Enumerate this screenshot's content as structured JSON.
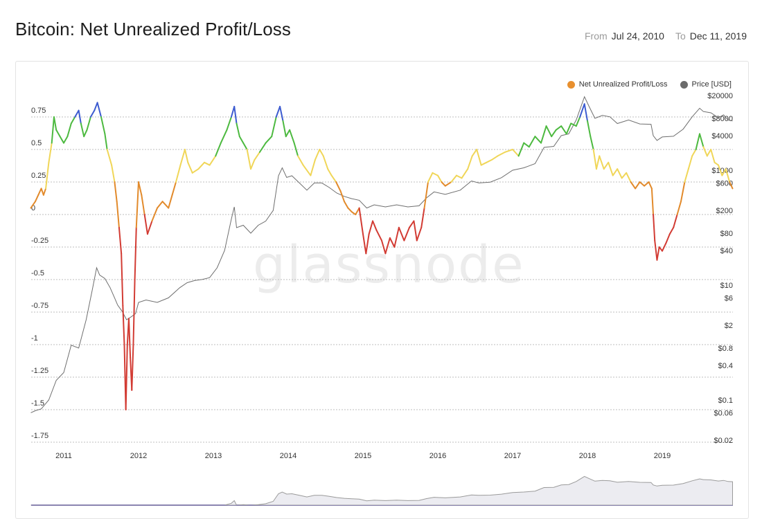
{
  "header": {
    "title": "Bitcoin: Net Unrealized Profit/Loss",
    "from_label": "From",
    "from_date": "Jul 24, 2010",
    "to_label": "To",
    "to_date": "Dec 11, 2019"
  },
  "watermark": "glassnode",
  "colors": {
    "red": "#d23b33",
    "orange": "#e28a2b",
    "yellow": "#f0d658",
    "green": "#4cb93f",
    "blue": "#3c5bd0",
    "price": "#6e6e6e",
    "legend_nupl": "#e8902f",
    "legend_price": "#6b6b6b"
  },
  "chart_data": {
    "type": "line",
    "title": "Bitcoin: Net Unrealized Profit/Loss",
    "legend_position": "top-right",
    "grid": true,
    "x_ticks": [
      "2011",
      "2012",
      "2013",
      "2014",
      "2015",
      "2016",
      "2017",
      "2018",
      "2019"
    ],
    "y_left": {
      "ticks": [
        "0.75",
        "0.5",
        "0.25",
        "0",
        "-0.25",
        "-0.5",
        "-0.75",
        "-1",
        "-1.25",
        "-1.5",
        "-1.75"
      ],
      "values": [
        0.75,
        0.5,
        0.25,
        0,
        -0.25,
        -0.5,
        -0.75,
        -1,
        -1.25,
        -1.5,
        -1.75
      ],
      "range": [
        -1.75,
        1.0
      ]
    },
    "y_right": {
      "ticks": [
        "$20000",
        "$8000",
        "$4000",
        "$1000",
        "$600",
        "$200",
        "$80",
        "$40",
        "$10",
        "$6",
        "$2",
        "$0.8",
        "$0.4",
        "$0.1",
        "$0.06",
        "$0.02"
      ],
      "values": [
        20000,
        8000,
        4000,
        1000,
        600,
        200,
        80,
        40,
        10,
        6,
        2,
        0.8,
        0.4,
        0.1,
        0.06,
        0.02
      ],
      "scale": "log",
      "range": [
        0.02,
        20000
      ]
    },
    "series": [
      {
        "name": "Net Unrealized Profit/Loss",
        "axis": "left",
        "points": [
          [
            2010.56,
            0.05
          ],
          [
            2010.62,
            0.1
          ],
          [
            2010.66,
            0.15
          ],
          [
            2010.7,
            0.2
          ],
          [
            2010.73,
            0.15
          ],
          [
            2010.76,
            0.2
          ],
          [
            2010.8,
            0.4
          ],
          [
            2010.84,
            0.55
          ],
          [
            2010.87,
            0.75
          ],
          [
            2010.9,
            0.65
          ],
          [
            2010.95,
            0.6
          ],
          [
            2011.0,
            0.55
          ],
          [
            2011.05,
            0.6
          ],
          [
            2011.1,
            0.7
          ],
          [
            2011.15,
            0.75
          ],
          [
            2011.2,
            0.8
          ],
          [
            2011.23,
            0.7
          ],
          [
            2011.27,
            0.6
          ],
          [
            2011.31,
            0.65
          ],
          [
            2011.36,
            0.75
          ],
          [
            2011.41,
            0.8
          ],
          [
            2011.45,
            0.86
          ],
          [
            2011.5,
            0.75
          ],
          [
            2011.55,
            0.62
          ],
          [
            2011.58,
            0.5
          ],
          [
            2011.64,
            0.38
          ],
          [
            2011.68,
            0.25
          ],
          [
            2011.71,
            0.1
          ],
          [
            2011.74,
            -0.1
          ],
          [
            2011.77,
            -0.3
          ],
          [
            2011.79,
            -0.7
          ],
          [
            2011.81,
            -1.0
          ],
          [
            2011.83,
            -1.5
          ],
          [
            2011.85,
            -1.0
          ],
          [
            2011.87,
            -0.8
          ],
          [
            2011.89,
            -1.1
          ],
          [
            2011.91,
            -1.35
          ],
          [
            2011.93,
            -1.0
          ],
          [
            2011.95,
            -0.5
          ],
          [
            2011.97,
            -0.1
          ],
          [
            2012.0,
            0.25
          ],
          [
            2012.04,
            0.15
          ],
          [
            2012.08,
            0.0
          ],
          [
            2012.12,
            -0.15
          ],
          [
            2012.18,
            -0.05
          ],
          [
            2012.25,
            0.05
          ],
          [
            2012.32,
            0.1
          ],
          [
            2012.4,
            0.05
          ],
          [
            2012.45,
            0.15
          ],
          [
            2012.5,
            0.25
          ],
          [
            2012.56,
            0.38
          ],
          [
            2012.62,
            0.5
          ],
          [
            2012.66,
            0.4
          ],
          [
            2012.72,
            0.32
          ],
          [
            2012.8,
            0.35
          ],
          [
            2012.88,
            0.4
          ],
          [
            2012.95,
            0.38
          ],
          [
            2013.03,
            0.45
          ],
          [
            2013.1,
            0.55
          ],
          [
            2013.18,
            0.65
          ],
          [
            2013.24,
            0.75
          ],
          [
            2013.28,
            0.83
          ],
          [
            2013.31,
            0.7
          ],
          [
            2013.35,
            0.6
          ],
          [
            2013.4,
            0.55
          ],
          [
            2013.45,
            0.5
          ],
          [
            2013.5,
            0.35
          ],
          [
            2013.55,
            0.42
          ],
          [
            2013.62,
            0.48
          ],
          [
            2013.7,
            0.55
          ],
          [
            2013.78,
            0.6
          ],
          [
            2013.84,
            0.75
          ],
          [
            2013.89,
            0.83
          ],
          [
            2013.93,
            0.72
          ],
          [
            2013.97,
            0.6
          ],
          [
            2014.02,
            0.65
          ],
          [
            2014.08,
            0.55
          ],
          [
            2014.13,
            0.45
          ],
          [
            2014.2,
            0.38
          ],
          [
            2014.3,
            0.3
          ],
          [
            2014.36,
            0.42
          ],
          [
            2014.42,
            0.5
          ],
          [
            2014.47,
            0.45
          ],
          [
            2014.53,
            0.35
          ],
          [
            2014.58,
            0.3
          ],
          [
            2014.64,
            0.25
          ],
          [
            2014.7,
            0.18
          ],
          [
            2014.75,
            0.1
          ],
          [
            2014.8,
            0.05
          ],
          [
            2014.85,
            0.02
          ],
          [
            2014.9,
            0.0
          ],
          [
            2014.95,
            0.05
          ],
          [
            2015.0,
            -0.15
          ],
          [
            2015.04,
            -0.3
          ],
          [
            2015.08,
            -0.15
          ],
          [
            2015.13,
            -0.05
          ],
          [
            2015.18,
            -0.12
          ],
          [
            2015.25,
            -0.2
          ],
          [
            2015.3,
            -0.3
          ],
          [
            2015.36,
            -0.18
          ],
          [
            2015.42,
            -0.25
          ],
          [
            2015.48,
            -0.1
          ],
          [
            2015.55,
            -0.2
          ],
          [
            2015.62,
            -0.1
          ],
          [
            2015.68,
            -0.05
          ],
          [
            2015.72,
            -0.2
          ],
          [
            2015.78,
            -0.1
          ],
          [
            2015.82,
            0.05
          ],
          [
            2015.87,
            0.25
          ],
          [
            2015.93,
            0.32
          ],
          [
            2016.0,
            0.3
          ],
          [
            2016.05,
            0.25
          ],
          [
            2016.1,
            0.22
          ],
          [
            2016.18,
            0.25
          ],
          [
            2016.25,
            0.3
          ],
          [
            2016.32,
            0.28
          ],
          [
            2016.4,
            0.35
          ],
          [
            2016.46,
            0.45
          ],
          [
            2016.52,
            0.5
          ],
          [
            2016.58,
            0.38
          ],
          [
            2016.65,
            0.4
          ],
          [
            2016.72,
            0.42
          ],
          [
            2016.8,
            0.45
          ],
          [
            2016.9,
            0.48
          ],
          [
            2017.0,
            0.5
          ],
          [
            2017.08,
            0.45
          ],
          [
            2017.15,
            0.55
          ],
          [
            2017.22,
            0.52
          ],
          [
            2017.3,
            0.6
          ],
          [
            2017.38,
            0.55
          ],
          [
            2017.45,
            0.68
          ],
          [
            2017.52,
            0.6
          ],
          [
            2017.58,
            0.65
          ],
          [
            2017.65,
            0.68
          ],
          [
            2017.72,
            0.62
          ],
          [
            2017.78,
            0.7
          ],
          [
            2017.85,
            0.68
          ],
          [
            2017.9,
            0.75
          ],
          [
            2017.96,
            0.85
          ],
          [
            2018.0,
            0.72
          ],
          [
            2018.04,
            0.6
          ],
          [
            2018.08,
            0.5
          ],
          [
            2018.12,
            0.35
          ],
          [
            2018.16,
            0.45
          ],
          [
            2018.22,
            0.35
          ],
          [
            2018.28,
            0.4
          ],
          [
            2018.34,
            0.3
          ],
          [
            2018.4,
            0.35
          ],
          [
            2018.46,
            0.28
          ],
          [
            2018.52,
            0.32
          ],
          [
            2018.58,
            0.25
          ],
          [
            2018.64,
            0.2
          ],
          [
            2018.7,
            0.25
          ],
          [
            2018.76,
            0.22
          ],
          [
            2018.82,
            0.25
          ],
          [
            2018.86,
            0.2
          ],
          [
            2018.88,
            0.0
          ],
          [
            2018.9,
            -0.2
          ],
          [
            2018.93,
            -0.35
          ],
          [
            2018.96,
            -0.25
          ],
          [
            2019.0,
            -0.28
          ],
          [
            2019.05,
            -0.22
          ],
          [
            2019.1,
            -0.15
          ],
          [
            2019.15,
            -0.1
          ],
          [
            2019.2,
            0.0
          ],
          [
            2019.25,
            0.1
          ],
          [
            2019.3,
            0.25
          ],
          [
            2019.35,
            0.35
          ],
          [
            2019.4,
            0.45
          ],
          [
            2019.45,
            0.5
          ],
          [
            2019.5,
            0.62
          ],
          [
            2019.55,
            0.52
          ],
          [
            2019.6,
            0.45
          ],
          [
            2019.65,
            0.5
          ],
          [
            2019.7,
            0.4
          ],
          [
            2019.75,
            0.38
          ],
          [
            2019.8,
            0.3
          ],
          [
            2019.85,
            0.35
          ],
          [
            2019.9,
            0.25
          ],
          [
            2019.94,
            0.2
          ]
        ]
      },
      {
        "name": "Price [USD]",
        "axis": "right",
        "points": [
          [
            2010.56,
            0.06
          ],
          [
            2010.62,
            0.065
          ],
          [
            2010.7,
            0.07
          ],
          [
            2010.8,
            0.1
          ],
          [
            2010.9,
            0.22
          ],
          [
            2011.0,
            0.3
          ],
          [
            2011.1,
            0.9
          ],
          [
            2011.2,
            0.8
          ],
          [
            2011.3,
            2.5
          ],
          [
            2011.38,
            8
          ],
          [
            2011.44,
            20
          ],
          [
            2011.48,
            15
          ],
          [
            2011.55,
            13
          ],
          [
            2011.62,
            9
          ],
          [
            2011.68,
            6
          ],
          [
            2011.72,
            4.5
          ],
          [
            2011.78,
            3.5
          ],
          [
            2011.84,
            2.5
          ],
          [
            2011.9,
            2.8
          ],
          [
            2011.96,
            3.2
          ],
          [
            2012.0,
            5
          ],
          [
            2012.1,
            5.5
          ],
          [
            2012.25,
            5
          ],
          [
            2012.4,
            6
          ],
          [
            2012.55,
            9
          ],
          [
            2012.65,
            11
          ],
          [
            2012.75,
            12
          ],
          [
            2012.85,
            12.5
          ],
          [
            2012.95,
            13.5
          ],
          [
            2013.05,
            20
          ],
          [
            2013.15,
            40
          ],
          [
            2013.24,
            140
          ],
          [
            2013.28,
            230
          ],
          [
            2013.31,
            100
          ],
          [
            2013.4,
            110
          ],
          [
            2013.5,
            80
          ],
          [
            2013.6,
            110
          ],
          [
            2013.7,
            130
          ],
          [
            2013.8,
            200
          ],
          [
            2013.87,
            800
          ],
          [
            2013.92,
            1100
          ],
          [
            2013.98,
            750
          ],
          [
            2014.05,
            800
          ],
          [
            2014.15,
            600
          ],
          [
            2014.25,
            450
          ],
          [
            2014.35,
            600
          ],
          [
            2014.45,
            600
          ],
          [
            2014.55,
            500
          ],
          [
            2014.65,
            400
          ],
          [
            2014.75,
            350
          ],
          [
            2014.85,
            320
          ],
          [
            2014.95,
            300
          ],
          [
            2015.05,
            220
          ],
          [
            2015.15,
            250
          ],
          [
            2015.3,
            230
          ],
          [
            2015.45,
            250
          ],
          [
            2015.6,
            230
          ],
          [
            2015.75,
            240
          ],
          [
            2015.85,
            330
          ],
          [
            2015.95,
            420
          ],
          [
            2016.1,
            380
          ],
          [
            2016.3,
            450
          ],
          [
            2016.45,
            650
          ],
          [
            2016.55,
            600
          ],
          [
            2016.7,
            620
          ],
          [
            2016.85,
            740
          ],
          [
            2017.0,
            1000
          ],
          [
            2017.15,
            1100
          ],
          [
            2017.3,
            1300
          ],
          [
            2017.42,
            2500
          ],
          [
            2017.55,
            2600
          ],
          [
            2017.65,
            4000
          ],
          [
            2017.75,
            4300
          ],
          [
            2017.85,
            7500
          ],
          [
            2017.96,
            19000
          ],
          [
            2018.02,
            13000
          ],
          [
            2018.1,
            8000
          ],
          [
            2018.2,
            9000
          ],
          [
            2018.3,
            8500
          ],
          [
            2018.4,
            6500
          ],
          [
            2018.55,
            7500
          ],
          [
            2018.7,
            6400
          ],
          [
            2018.85,
            6300
          ],
          [
            2018.88,
            4000
          ],
          [
            2018.93,
            3300
          ],
          [
            2019.0,
            3800
          ],
          [
            2019.15,
            3900
          ],
          [
            2019.28,
            5200
          ],
          [
            2019.4,
            8500
          ],
          [
            2019.5,
            12000
          ],
          [
            2019.55,
            10500
          ],
          [
            2019.65,
            10000
          ],
          [
            2019.75,
            8200
          ],
          [
            2019.82,
            9200
          ],
          [
            2019.88,
            7500
          ],
          [
            2019.94,
            7200
          ]
        ]
      }
    ],
    "color_bands": [
      {
        "below": 0,
        "color": "red"
      },
      {
        "from": 0,
        "below": 0.25,
        "color": "orange"
      },
      {
        "from": 0.25,
        "below": 0.5,
        "color": "yellow"
      },
      {
        "from": 0.5,
        "below": 0.75,
        "color": "green"
      },
      {
        "from": 0.75,
        "color": "blue"
      }
    ]
  }
}
